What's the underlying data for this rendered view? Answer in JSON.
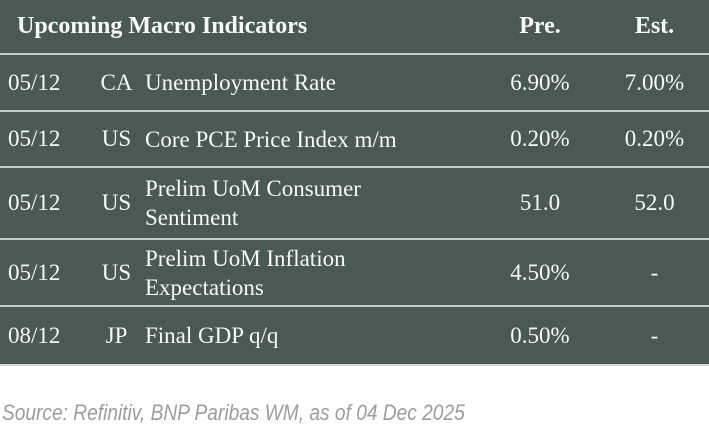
{
  "table": {
    "title": "Upcoming Macro Indicators",
    "columns": {
      "pre": "Pre.",
      "est": "Est."
    },
    "rows": [
      {
        "date": "05/12",
        "country": "CA",
        "indicator": "Unemployment Rate",
        "pre": "6.90%",
        "est": "7.00%"
      },
      {
        "date": "05/12",
        "country": "US",
        "indicator": "Core PCE Price Index m/m",
        "pre": "0.20%",
        "est": "0.20%"
      },
      {
        "date": "05/12",
        "country": "US",
        "indicator": "Prelim UoM Consumer Sentiment",
        "pre": "51.0",
        "est": "52.0"
      },
      {
        "date": "05/12",
        "country": "US",
        "indicator": "Prelim UoM Inflation Expectations",
        "pre": "4.50%",
        "est": "-"
      },
      {
        "date": "08/12",
        "country": "JP",
        "indicator": "Final GDP q/q",
        "pre": "0.50%",
        "est": "-"
      }
    ]
  },
  "footer": {
    "source": "Source: Refinitiv, BNP Paribas WM, as of 04 Dec 2025"
  },
  "colors": {
    "table_background": "#4a5a53",
    "row_divider": "#c2d0c8",
    "table_text": "#f7f9f6",
    "source_text": "#9c9c9c",
    "page_background": "#ffffff"
  }
}
